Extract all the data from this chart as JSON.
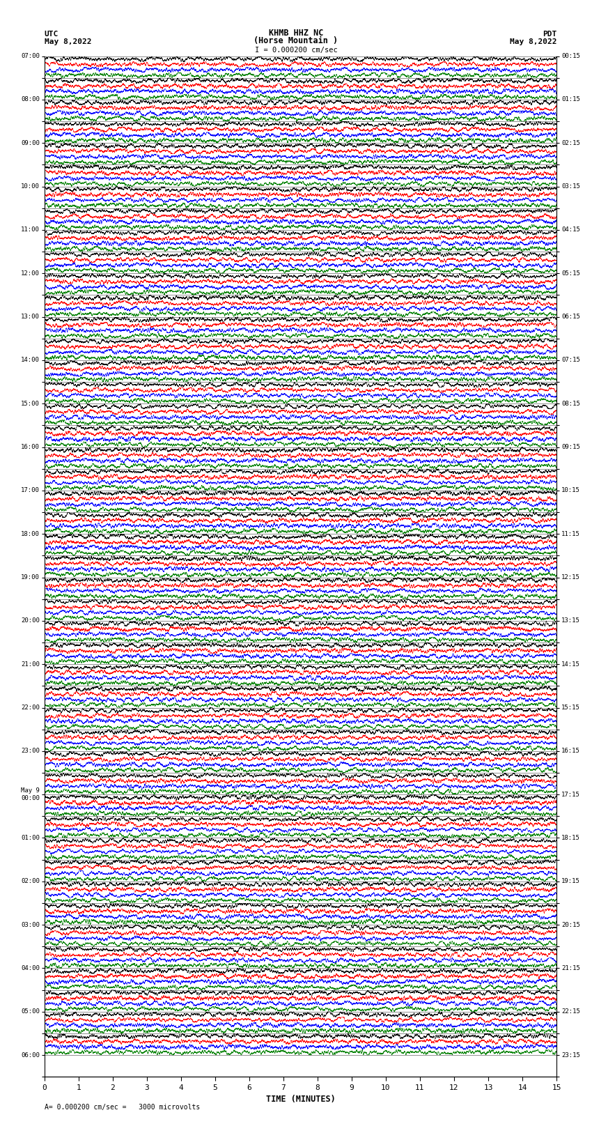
{
  "title_line1": "KHMB HHZ NC",
  "title_line2": "(Horse Mountain )",
  "title_line3": "I = 0.000200 cm/sec",
  "left_header_line1": "UTC",
  "left_header_line2": "May 8,2022",
  "right_header_line1": "PDT",
  "right_header_line2": "May 8,2022",
  "xlabel": "TIME (MINUTES)",
  "footer": "= 0.000200 cm/sec =   3000 microvolts",
  "left_times": [
    "07:00",
    "",
    "08:00",
    "",
    "09:00",
    "",
    "10:00",
    "",
    "11:00",
    "",
    "12:00",
    "",
    "13:00",
    "",
    "14:00",
    "",
    "15:00",
    "",
    "16:00",
    "",
    "17:00",
    "",
    "18:00",
    "",
    "19:00",
    "",
    "20:00",
    "",
    "21:00",
    "",
    "22:00",
    "",
    "23:00",
    "",
    "May 9\n00:00",
    "",
    "01:00",
    "",
    "02:00",
    "",
    "03:00",
    "",
    "04:00",
    "",
    "05:00",
    "",
    "06:00",
    ""
  ],
  "right_times": [
    "00:15",
    "",
    "01:15",
    "",
    "02:15",
    "",
    "03:15",
    "",
    "04:15",
    "",
    "05:15",
    "",
    "06:15",
    "",
    "07:15",
    "",
    "08:15",
    "",
    "09:15",
    "",
    "10:15",
    "",
    "11:15",
    "",
    "12:15",
    "",
    "13:15",
    "",
    "14:15",
    "",
    "15:15",
    "",
    "16:15",
    "",
    "17:15",
    "",
    "18:15",
    "",
    "19:15",
    "",
    "20:15",
    "",
    "21:15",
    "",
    "22:15",
    "",
    "23:15",
    ""
  ],
  "n_rows": 46,
  "n_cols": 4,
  "colors": [
    "black",
    "red",
    "blue",
    "green"
  ],
  "time_minutes": 15,
  "background_color": "white",
  "trace_amplitude": 0.48,
  "samples_per_row": 8000
}
